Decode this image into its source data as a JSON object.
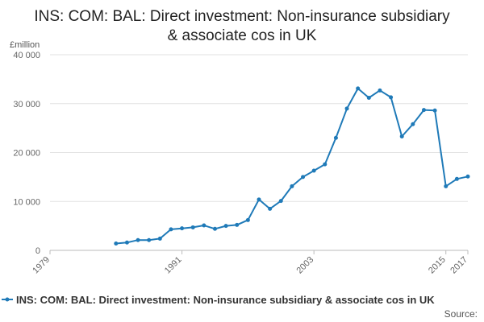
{
  "chart_data": {
    "type": "line",
    "title_line1": "INS: COM: BAL: Direct investment: Non-insurance subsidiary",
    "title_line2": "& associate cos in UK",
    "unit_label": "£million",
    "xlabel": "",
    "ylabel": "",
    "xlim": [
      1979,
      2017
    ],
    "ylim": [
      0,
      40000
    ],
    "y_ticks": [
      0,
      10000,
      20000,
      30000,
      40000
    ],
    "y_tick_labels": [
      "0",
      "10 000",
      "20 000",
      "30 000",
      "40 000"
    ],
    "x_ticks": [
      1979,
      1991,
      2003,
      2015,
      2017
    ],
    "x_tick_labels": [
      "1979",
      "1991",
      "2003",
      "2015",
      "2017"
    ],
    "grid": "horizontal",
    "legend_position": "bottom",
    "series": [
      {
        "name": "INS: COM: BAL: Direct investment: Non-insurance subsidiary & associate cos in UK",
        "color": "#1f7ab8",
        "x": [
          1985,
          1986,
          1987,
          1988,
          1989,
          1990,
          1991,
          1992,
          1993,
          1994,
          1995,
          1996,
          1997,
          1998,
          1999,
          2000,
          2001,
          2002,
          2003,
          2004,
          2005,
          2006,
          2007,
          2008,
          2009,
          2010,
          2011,
          2012,
          2013,
          2014,
          2015,
          2016,
          2017
        ],
        "values": [
          1400,
          1600,
          2100,
          2100,
          2400,
          4300,
          4500,
          4700,
          5100,
          4400,
          5000,
          5200,
          6200,
          10400,
          8500,
          10100,
          13100,
          15000,
          16300,
          17600,
          23000,
          29000,
          33100,
          31200,
          32700,
          31300,
          23300,
          25800,
          28700,
          28600,
          13100,
          14600,
          15100
        ]
      }
    ],
    "source_label": "Source:"
  }
}
